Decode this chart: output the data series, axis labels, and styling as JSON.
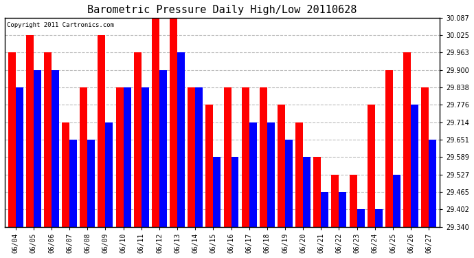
{
  "title": "Barometric Pressure Daily High/Low 20110628",
  "copyright": "Copyright 2011 Cartronics.com",
  "dates": [
    "06/04",
    "06/05",
    "06/06",
    "06/07",
    "06/08",
    "06/09",
    "06/10",
    "06/11",
    "06/12",
    "06/13",
    "06/14",
    "06/15",
    "06/16",
    "06/17",
    "06/18",
    "06/19",
    "06/20",
    "06/21",
    "06/22",
    "06/23",
    "06/24",
    "06/25",
    "06/26",
    "06/27"
  ],
  "highs": [
    29.963,
    30.025,
    29.963,
    29.714,
    29.838,
    30.025,
    29.838,
    29.963,
    30.087,
    30.087,
    29.838,
    29.776,
    29.838,
    29.838,
    29.838,
    29.776,
    29.714,
    29.589,
    29.527,
    29.527,
    29.776,
    29.9,
    29.963,
    29.838
  ],
  "lows": [
    29.838,
    29.9,
    29.9,
    29.651,
    29.651,
    29.714,
    29.838,
    29.838,
    29.9,
    29.963,
    29.838,
    29.589,
    29.589,
    29.714,
    29.714,
    29.651,
    29.589,
    29.465,
    29.465,
    29.402,
    29.402,
    29.527,
    29.776,
    29.651
  ],
  "high_color": "#ff0000",
  "low_color": "#0000ff",
  "bg_color": "#ffffff",
  "grid_color": "#bbbbbb",
  "ylim_min": 29.34,
  "ylim_max": 30.087,
  "yticks": [
    29.34,
    29.402,
    29.465,
    29.527,
    29.589,
    29.651,
    29.714,
    29.776,
    29.838,
    29.9,
    29.963,
    30.025,
    30.087
  ],
  "bar_width": 0.42,
  "figwidth": 6.9,
  "figheight": 3.75,
  "title_fontsize": 11,
  "tick_fontsize": 7,
  "copyright_fontsize": 6.5
}
